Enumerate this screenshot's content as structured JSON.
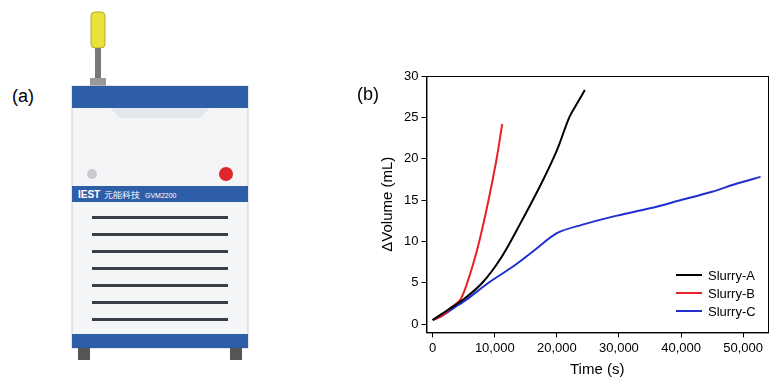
{
  "panel_a": {
    "label": "(a)",
    "brand": "IEST",
    "brand_cn": "元能科技",
    "model": "GVM2200"
  },
  "chart_data": {
    "type": "line",
    "panel_label": "(b)",
    "x_label": "Time (s)",
    "y_label": "ΔVolume (mL)",
    "xlim": [
      -1000,
      54000
    ],
    "xticks": [
      0,
      10000,
      20000,
      30000,
      40000,
      50000
    ],
    "ylim": [
      -1,
      30
    ],
    "yticks": [
      0,
      5,
      10,
      15,
      20,
      25,
      30
    ],
    "grid": false,
    "legend": "bottom right",
    "series": [
      {
        "name": "Slurry-A",
        "color": "#000000",
        "x": [
          0,
          1000,
          3000,
          5000,
          8000,
          11000,
          14000,
          17500,
          20000,
          22000,
          23500,
          24500
        ],
        "values": [
          0.5,
          1,
          2,
          3,
          5,
          8,
          12,
          17,
          21,
          25,
          27,
          28.3
        ]
      },
      {
        "name": "Slurry-B",
        "color": "#e8202a",
        "x": [
          0,
          1500,
          3000,
          4500,
          6000,
          7500,
          9000,
          10300,
          11200
        ],
        "values": [
          0.5,
          1,
          2,
          3,
          6,
          10,
          15,
          20,
          24.2
        ]
      },
      {
        "name": "Slurry-C",
        "color": "#1f2fd0",
        "x": [
          0,
          1500,
          3500,
          5500,
          9000,
          13000,
          16500,
          20000,
          24000,
          29000,
          35000,
          40000,
          45000,
          49000,
          52800
        ],
        "values": [
          0.5,
          1,
          2,
          3,
          5,
          7,
          9,
          11,
          12,
          13,
          14,
          15,
          16,
          17,
          17.8
        ]
      }
    ]
  }
}
